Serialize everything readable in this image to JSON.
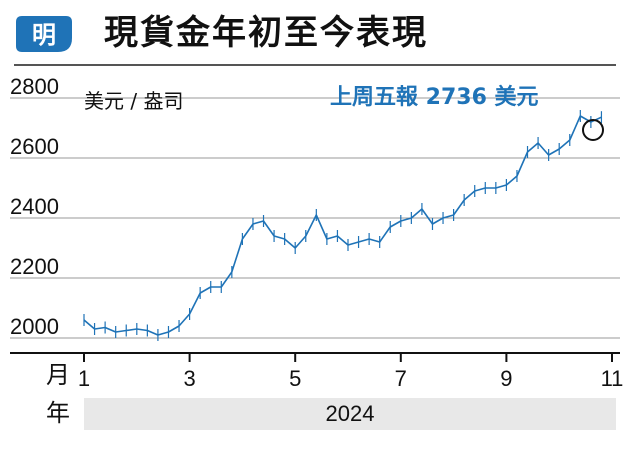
{
  "header": {
    "logo_text": "明",
    "title": "現貨金年初至今表現"
  },
  "chart_data": {
    "type": "line",
    "title": "現貨金年初至今表現",
    "ylabel": "美元 / 盎司",
    "xlabel": "",
    "ylim": [
      1950,
      2820
    ],
    "y_ticks": [
      2000,
      2200,
      2400,
      2600,
      2800
    ],
    "grid": "horizontal",
    "annotation": "上周五報 2736 美元",
    "month_row_label": "月",
    "year_row_label": "年",
    "year_label": "2024",
    "x_ticks": [
      {
        "label": "1",
        "month": 1
      },
      {
        "label": "3",
        "month": 3
      },
      {
        "label": "5",
        "month": 5
      },
      {
        "label": "7",
        "month": 7
      },
      {
        "label": "9",
        "month": 9
      },
      {
        "label": "11",
        "month": 11
      }
    ],
    "series": [
      {
        "x": [
          1.0,
          1.2,
          1.4,
          1.6,
          1.8,
          2.0,
          2.2,
          2.4,
          2.6,
          2.8,
          3.0,
          3.2,
          3.4,
          3.6,
          3.8,
          4.0,
          4.2,
          4.4,
          4.6,
          4.8,
          5.0,
          5.2,
          5.4,
          5.6,
          5.8,
          6.0,
          6.2,
          6.4,
          6.6,
          6.8,
          7.0,
          7.2,
          7.4,
          7.6,
          7.8,
          8.0,
          8.2,
          8.4,
          8.6,
          8.8,
          9.0,
          9.2,
          9.4,
          9.6,
          9.8,
          10.0,
          10.2,
          10.4,
          10.6,
          10.8
        ],
        "y": [
          2060,
          2030,
          2035,
          2020,
          2025,
          2030,
          2025,
          2010,
          2020,
          2040,
          2080,
          2150,
          2170,
          2170,
          2220,
          2330,
          2380,
          2390,
          2340,
          2330,
          2300,
          2340,
          2410,
          2330,
          2340,
          2310,
          2320,
          2330,
          2320,
          2370,
          2390,
          2400,
          2430,
          2380,
          2400,
          2410,
          2460,
          2490,
          2500,
          2500,
          2510,
          2540,
          2620,
          2650,
          2610,
          2630,
          2660,
          2740,
          2720,
          2736
        ]
      }
    ]
  }
}
